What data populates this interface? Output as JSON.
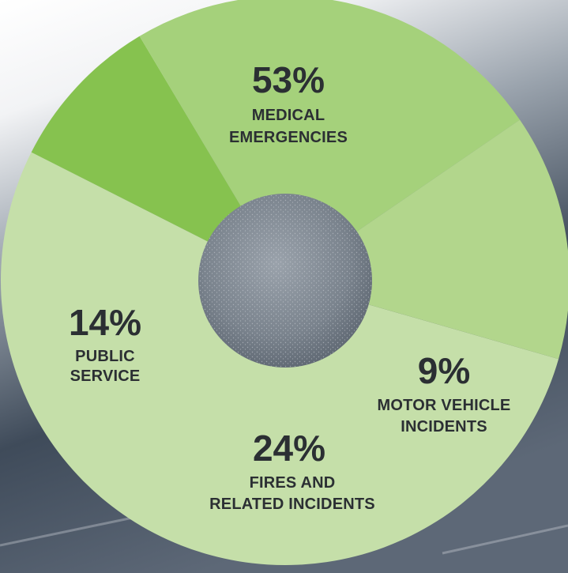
{
  "chart_data": {
    "type": "pie",
    "style": "donut",
    "title": "",
    "slices": [
      {
        "value": 53,
        "label": "53%",
        "category_lines": [
          "MEDICAL",
          "EMERGENCIES"
        ],
        "color": "#c5dfa9"
      },
      {
        "value": 9,
        "label": "9%",
        "category_lines": [
          "MOTOR VEHICLE",
          "INCIDENTS"
        ],
        "color": "#86c24f"
      },
      {
        "value": 24,
        "label": "24%",
        "category_lines": [
          "FIRES AND",
          "RELATED INCIDENTS"
        ],
        "color": "#a5d17b"
      },
      {
        "value": 14,
        "label": "14%",
        "category_lines": [
          "PUBLIC",
          "SERVICE"
        ],
        "color": "#b2d68c"
      }
    ],
    "colors": {
      "background_sky": "#ffffff",
      "background_road": "#4a5666",
      "center_hole": "#7d8690",
      "text": "#2b2f33"
    }
  }
}
